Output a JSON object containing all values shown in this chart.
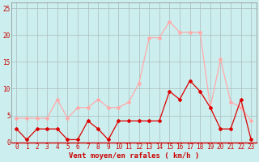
{
  "x": [
    0,
    1,
    2,
    3,
    4,
    5,
    6,
    7,
    8,
    9,
    10,
    11,
    12,
    13,
    14,
    15,
    16,
    17,
    18,
    19,
    20,
    21,
    22,
    23
  ],
  "wind_avg": [
    2.5,
    0.5,
    2.5,
    2.5,
    2.5,
    0.5,
    0.5,
    4.0,
    2.5,
    0.5,
    4.0,
    4.0,
    4.0,
    4.0,
    4.0,
    9.5,
    8.0,
    11.5,
    9.5,
    6.5,
    2.5,
    2.5,
    8.0,
    0.5
  ],
  "wind_gust": [
    4.5,
    4.5,
    4.5,
    4.5,
    8.0,
    4.5,
    6.5,
    6.5,
    8.0,
    6.5,
    6.5,
    7.5,
    11.0,
    19.5,
    19.5,
    22.5,
    20.5,
    20.5,
    20.5,
    6.5,
    15.5,
    7.5,
    6.5,
    4.0
  ],
  "color_avg": "#dd0000",
  "color_gust": "#ffaaaa",
  "bg_color": "#cceeee",
  "grid_color": "#aabbbb",
  "spine_color": "#888888",
  "xlabel": "Vent moyen/en rafales ( km/h )",
  "ylim": [
    0,
    26
  ],
  "yticks": [
    0,
    5,
    10,
    15,
    20,
    25
  ],
  "xticks": [
    0,
    1,
    2,
    3,
    4,
    5,
    6,
    7,
    8,
    9,
    10,
    11,
    12,
    13,
    14,
    15,
    16,
    17,
    18,
    19,
    20,
    21,
    22,
    23
  ],
  "label_fontsize": 6.5,
  "tick_fontsize": 5.5
}
